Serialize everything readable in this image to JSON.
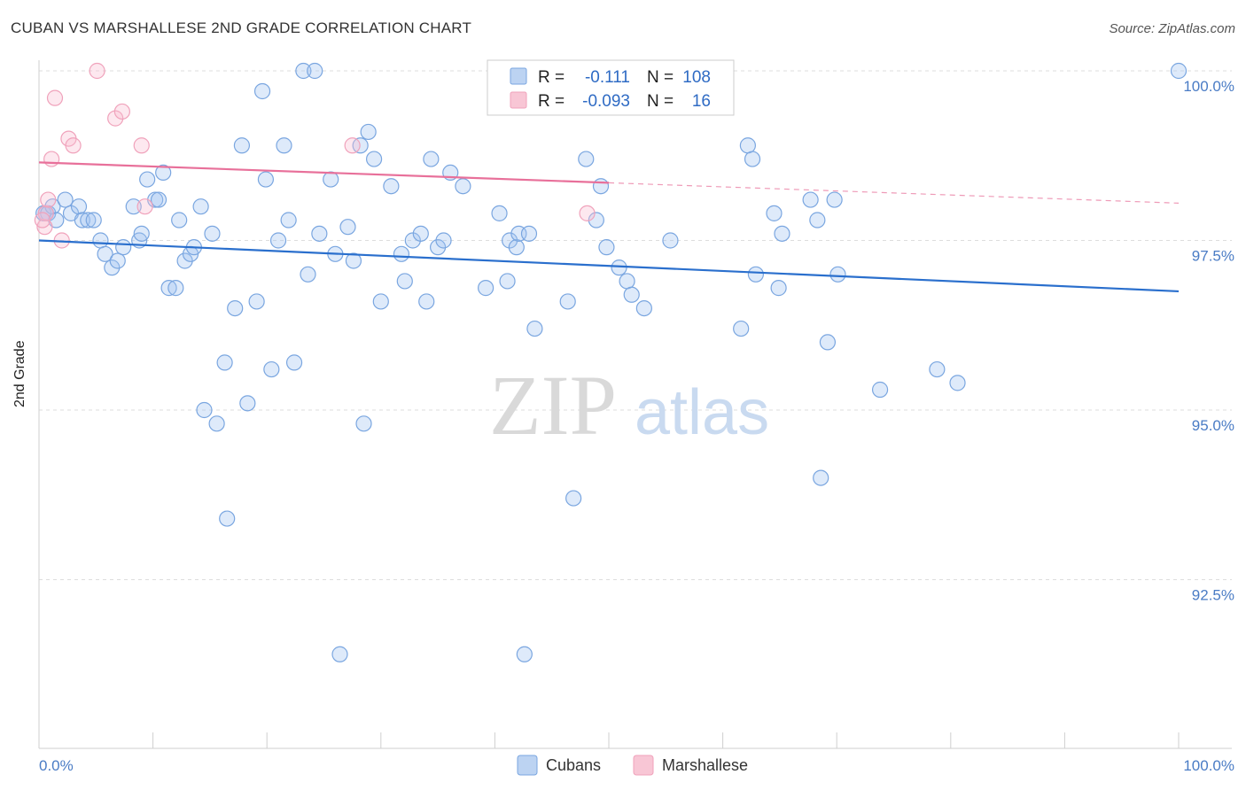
{
  "title": "CUBAN VS MARSHALLESE 2ND GRADE CORRELATION CHART",
  "source": "Source: ZipAtlas.com",
  "watermark": {
    "zip": "ZIP",
    "atlas": "atlas"
  },
  "legend": {
    "rows": [
      {
        "r_label": "R =",
        "r_value": "-0.111",
        "n_label": "N =",
        "n_value": "108"
      },
      {
        "r_label": "R =",
        "r_value": "-0.093",
        "n_label": "N =",
        "n_value": "16"
      }
    ]
  },
  "chart_data": {
    "type": "scatter",
    "title": "CUBAN VS MARSHALLESE 2ND GRADE CORRELATION CHART",
    "xlabel": "",
    "ylabel": "2nd Grade",
    "xlim": [
      0,
      100
    ],
    "ylim": [
      90.0,
      100.2
    ],
    "x_tick_labels": [
      "0.0%",
      "100.0%"
    ],
    "y_ticks": [
      92.5,
      95.0,
      97.5,
      100.0
    ],
    "y_tick_labels": [
      "92.5%",
      "95.0%",
      "97.5%",
      "100.0%"
    ],
    "grid": true,
    "legend_position": "top-center",
    "colors": {
      "cubans": "#7aa6e0",
      "marshallese": "#f0a2bb",
      "cubans_line": "#2a6fcd",
      "marshallese_line": "#e8709a"
    },
    "series": [
      {
        "name": "Cubans",
        "r": -0.111,
        "n": 108,
        "trend": {
          "x": [
            0,
            100
          ],
          "y": [
            97.5,
            96.75
          ]
        },
        "points": [
          [
            0.4,
            97.9
          ],
          [
            0.8,
            97.9
          ],
          [
            1.2,
            98.0
          ],
          [
            1.5,
            97.8
          ],
          [
            2.3,
            98.1
          ],
          [
            2.8,
            97.9
          ],
          [
            3.5,
            98.0
          ],
          [
            3.8,
            97.8
          ],
          [
            4.3,
            97.8
          ],
          [
            4.8,
            97.8
          ],
          [
            5.4,
            97.5
          ],
          [
            5.8,
            97.3
          ],
          [
            6.4,
            97.1
          ],
          [
            6.9,
            97.2
          ],
          [
            7.4,
            97.4
          ],
          [
            8.3,
            98.0
          ],
          [
            8.8,
            97.5
          ],
          [
            9.0,
            97.6
          ],
          [
            9.5,
            98.4
          ],
          [
            10.2,
            98.1
          ],
          [
            10.5,
            98.1
          ],
          [
            10.9,
            98.5
          ],
          [
            11.4,
            96.8
          ],
          [
            12.0,
            96.8
          ],
          [
            12.3,
            97.8
          ],
          [
            12.8,
            97.2
          ],
          [
            13.3,
            97.3
          ],
          [
            13.6,
            97.4
          ],
          [
            14.2,
            98.0
          ],
          [
            14.5,
            95.0
          ],
          [
            15.2,
            97.6
          ],
          [
            15.6,
            94.8
          ],
          [
            16.3,
            95.7
          ],
          [
            16.5,
            93.4
          ],
          [
            17.2,
            96.5
          ],
          [
            17.8,
            98.9
          ],
          [
            18.3,
            95.1
          ],
          [
            19.1,
            96.6
          ],
          [
            19.6,
            99.7
          ],
          [
            19.9,
            98.4
          ],
          [
            20.4,
            95.6
          ],
          [
            21.0,
            97.5
          ],
          [
            21.5,
            98.9
          ],
          [
            21.9,
            97.8
          ],
          [
            22.4,
            95.7
          ],
          [
            23.2,
            100.0
          ],
          [
            23.6,
            97.0
          ],
          [
            24.2,
            100.0
          ],
          [
            24.6,
            97.6
          ],
          [
            25.6,
            98.4
          ],
          [
            26.0,
            97.3
          ],
          [
            26.4,
            91.4
          ],
          [
            27.1,
            97.7
          ],
          [
            27.6,
            97.2
          ],
          [
            28.2,
            98.9
          ],
          [
            28.5,
            94.8
          ],
          [
            28.9,
            99.1
          ],
          [
            29.4,
            98.7
          ],
          [
            30.0,
            96.6
          ],
          [
            30.9,
            98.3
          ],
          [
            31.8,
            97.3
          ],
          [
            32.1,
            96.9
          ],
          [
            32.8,
            97.5
          ],
          [
            33.5,
            97.6
          ],
          [
            34.0,
            96.6
          ],
          [
            34.4,
            98.7
          ],
          [
            35.0,
            97.4
          ],
          [
            35.5,
            97.5
          ],
          [
            36.1,
            98.5
          ],
          [
            37.2,
            98.3
          ],
          [
            39.2,
            96.8
          ],
          [
            40.4,
            97.9
          ],
          [
            41.1,
            96.9
          ],
          [
            41.3,
            97.5
          ],
          [
            41.9,
            97.4
          ],
          [
            42.1,
            97.6
          ],
          [
            42.6,
            91.4
          ],
          [
            43.0,
            97.6
          ],
          [
            43.5,
            96.2
          ],
          [
            46.4,
            96.6
          ],
          [
            46.9,
            93.7
          ],
          [
            48.0,
            98.7
          ],
          [
            48.9,
            97.8
          ],
          [
            49.3,
            98.3
          ],
          [
            49.8,
            97.4
          ],
          [
            50.9,
            97.1
          ],
          [
            51.6,
            96.9
          ],
          [
            52.0,
            96.7
          ],
          [
            53.1,
            96.5
          ],
          [
            55.4,
            97.5
          ],
          [
            61.6,
            96.2
          ],
          [
            62.2,
            98.9
          ],
          [
            62.6,
            98.7
          ],
          [
            62.9,
            97.0
          ],
          [
            64.5,
            97.9
          ],
          [
            64.9,
            96.8
          ],
          [
            65.2,
            97.6
          ],
          [
            67.7,
            98.1
          ],
          [
            68.3,
            97.8
          ],
          [
            68.6,
            94.0
          ],
          [
            69.2,
            96.0
          ],
          [
            69.8,
            98.1
          ],
          [
            70.1,
            97.0
          ],
          [
            73.8,
            95.3
          ],
          [
            78.8,
            95.6
          ],
          [
            80.6,
            95.4
          ],
          [
            100,
            100.0
          ],
          [
            0.6,
            97.9
          ]
        ]
      },
      {
        "name": "Marshallese",
        "r": -0.093,
        "n": 16,
        "trend": {
          "x": [
            0,
            50
          ],
          "y": [
            98.65,
            98.35
          ]
        },
        "trend_dashed_extension": {
          "x": [
            50,
            100
          ],
          "y": [
            98.35,
            98.05
          ]
        },
        "points": [
          [
            0.5,
            97.7
          ],
          [
            0.6,
            97.9
          ],
          [
            0.8,
            98.1
          ],
          [
            1.1,
            98.7
          ],
          [
            1.4,
            99.6
          ],
          [
            2.0,
            97.5
          ],
          [
            2.6,
            99.0
          ],
          [
            3.0,
            98.9
          ],
          [
            5.1,
            100.0
          ],
          [
            6.7,
            99.3
          ],
          [
            7.3,
            99.4
          ],
          [
            9.0,
            98.9
          ],
          [
            9.3,
            98.0
          ],
          [
            27.5,
            98.9
          ],
          [
            48.1,
            97.9
          ],
          [
            0.3,
            97.8
          ]
        ]
      }
    ]
  },
  "bottom_legend": [
    "Cubans",
    "Marshallese"
  ]
}
